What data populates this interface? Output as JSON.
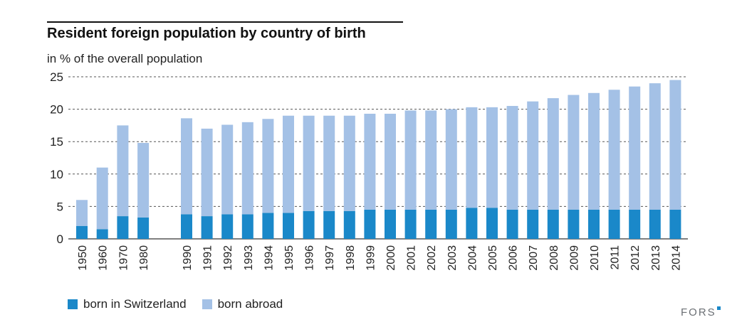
{
  "header": {
    "title": "Resident foreign population by country of birth",
    "subtitle": "in % of the overall population"
  },
  "legend": {
    "items": [
      {
        "label": "born in Switzerland",
        "color": "#1a88c9"
      },
      {
        "label": "born abroad",
        "color": "#a4c1e6"
      }
    ]
  },
  "logo": {
    "text": "FORS",
    "accent_color": "#1a88c9"
  },
  "chart_data": {
    "type": "bar",
    "stacked": true,
    "title": "Resident foreign population by country of birth",
    "ylabel": "in % of the overall population",
    "ylim": [
      0,
      25
    ],
    "yticks": [
      0,
      5,
      10,
      15,
      20,
      25
    ],
    "grid": "dashed horizontal",
    "legend_position": "bottom-left",
    "categories": [
      "1950",
      "1960",
      "1970",
      "1980",
      "1990",
      "1991",
      "1992",
      "1993",
      "1994",
      "1995",
      "1996",
      "1997",
      "1998",
      "1999",
      "2000",
      "2001",
      "2002",
      "2003",
      "2004",
      "2005",
      "2006",
      "2007",
      "2008",
      "2009",
      "2010",
      "2011",
      "2012",
      "2013",
      "2014"
    ],
    "series": [
      {
        "name": "born in Switzerland",
        "color": "#1a88c9",
        "values": [
          2.0,
          1.5,
          3.5,
          3.3,
          3.8,
          3.5,
          3.8,
          3.8,
          4.0,
          4.0,
          4.3,
          4.3,
          4.3,
          4.5,
          4.5,
          4.5,
          4.5,
          4.5,
          4.8,
          4.8,
          4.5,
          4.5,
          4.5,
          4.5,
          4.5,
          4.5,
          4.5,
          4.5,
          4.5
        ]
      },
      {
        "name": "born abroad",
        "color": "#a4c1e6",
        "values": [
          4.0,
          9.5,
          14.0,
          11.5,
          14.8,
          13.5,
          13.8,
          14.2,
          14.5,
          15.0,
          14.7,
          14.7,
          14.7,
          14.8,
          14.8,
          15.3,
          15.3,
          15.5,
          15.5,
          15.5,
          16.0,
          16.7,
          17.2,
          17.7,
          18.0,
          18.5,
          19.0,
          19.5,
          20.0
        ]
      }
    ],
    "totals": [
      6.0,
      11.0,
      17.5,
      14.8,
      18.6,
      17.0,
      17.6,
      18.0,
      18.5,
      19.0,
      19.0,
      19.0,
      19.0,
      19.3,
      19.3,
      19.8,
      19.8,
      20.0,
      20.3,
      20.3,
      20.5,
      21.2,
      21.7,
      22.2,
      22.5,
      23.0,
      23.5,
      24.0,
      24.5
    ]
  }
}
